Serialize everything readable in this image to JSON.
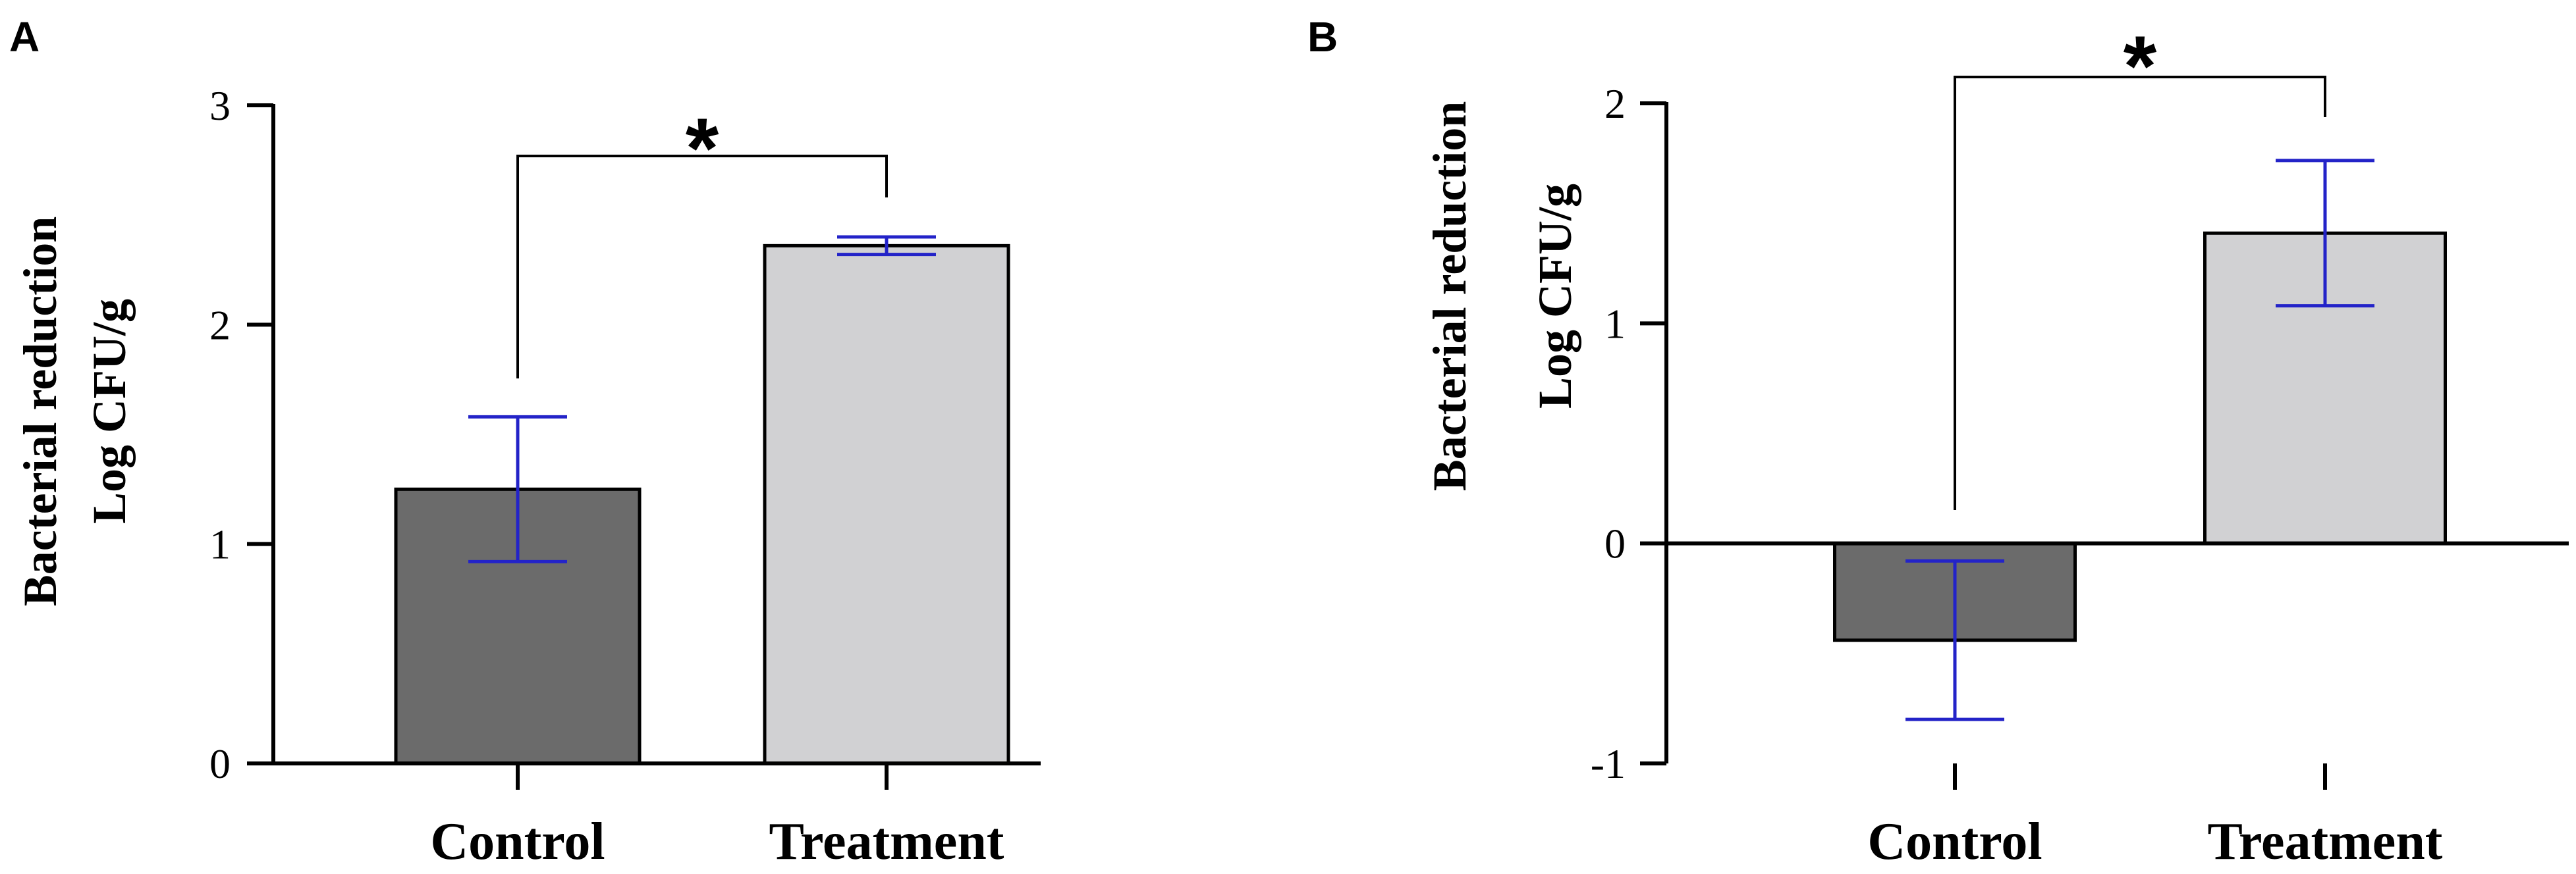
{
  "chart_data": [
    {
      "type": "bar",
      "panel_label": "A",
      "categories": [
        "Control",
        "Treatment"
      ],
      "values": [
        1.25,
        2.36
      ],
      "error": [
        0.33,
        0.04
      ],
      "ylabel": [
        "Bacterial reduction",
        "Log CFU/g"
      ],
      "ylim": [
        0,
        3
      ],
      "yticks": [
        0,
        1,
        2,
        3
      ],
      "bar_colors": [
        "#6b6b6b",
        "#d1d1d3"
      ],
      "error_color": "#2323c8",
      "significance": {
        "between": [
          "Control",
          "Treatment"
        ],
        "label": "*"
      },
      "grid": false
    },
    {
      "type": "bar",
      "panel_label": "B",
      "categories": [
        "Control",
        "Treatment"
      ],
      "values": [
        -0.44,
        1.41
      ],
      "error": [
        0.36,
        0.33
      ],
      "ylabel": [
        "Bacterial reduction",
        "Log CFU/g"
      ],
      "ylim": [
        -1,
        2
      ],
      "yticks": [
        -1,
        0,
        1,
        2
      ],
      "bar_colors": [
        "#6b6b6b",
        "#d1d1d3"
      ],
      "error_color": "#2323c8",
      "significance": {
        "between": [
          "Control",
          "Treatment"
        ],
        "label": "*"
      },
      "grid": false
    }
  ]
}
